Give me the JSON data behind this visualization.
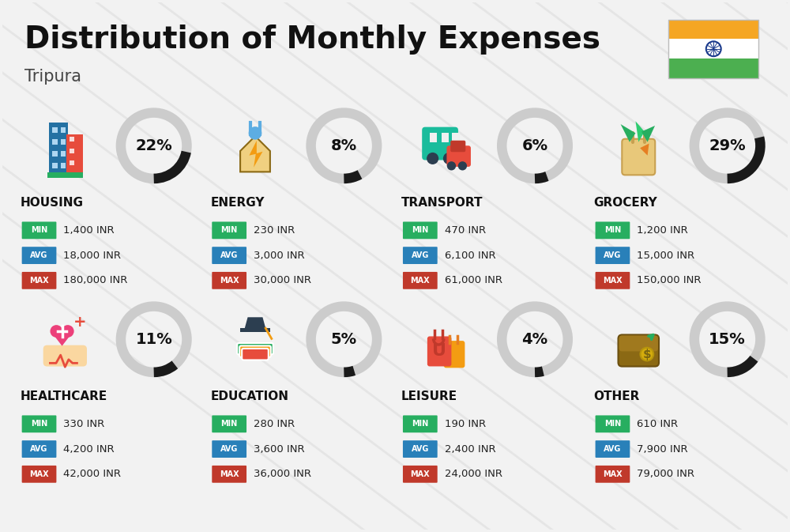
{
  "title": "Distribution of Monthly Expenses",
  "subtitle": "Tripura",
  "bg_color": "#f2f2f2",
  "categories": [
    {
      "name": "HOUSING",
      "percent": 22,
      "min_val": "1,400 INR",
      "avg_val": "18,000 INR",
      "max_val": "180,000 INR",
      "col": 0,
      "row": 0
    },
    {
      "name": "ENERGY",
      "percent": 8,
      "min_val": "230 INR",
      "avg_val": "3,000 INR",
      "max_val": "30,000 INR",
      "col": 1,
      "row": 0
    },
    {
      "name": "TRANSPORT",
      "percent": 6,
      "min_val": "470 INR",
      "avg_val": "6,100 INR",
      "max_val": "61,000 INR",
      "col": 2,
      "row": 0
    },
    {
      "name": "GROCERY",
      "percent": 29,
      "min_val": "1,200 INR",
      "avg_val": "15,000 INR",
      "max_val": "150,000 INR",
      "col": 3,
      "row": 0
    },
    {
      "name": "HEALTHCARE",
      "percent": 11,
      "min_val": "330 INR",
      "avg_val": "4,200 INR",
      "max_val": "42,000 INR",
      "col": 0,
      "row": 1
    },
    {
      "name": "EDUCATION",
      "percent": 5,
      "min_val": "280 INR",
      "avg_val": "3,600 INR",
      "max_val": "36,000 INR",
      "col": 1,
      "row": 1
    },
    {
      "name": "LEISURE",
      "percent": 4,
      "min_val": "190 INR",
      "avg_val": "2,400 INR",
      "max_val": "24,000 INR",
      "col": 2,
      "row": 1
    },
    {
      "name": "OTHER",
      "percent": 15,
      "min_val": "610 INR",
      "avg_val": "7,900 INR",
      "max_val": "79,000 INR",
      "col": 3,
      "row": 1
    }
  ],
  "color_min": "#27ae60",
  "color_avg": "#2980b9",
  "color_max": "#c0392b",
  "donut_bg": "#cccccc",
  "donut_fg": "#1a1a1a",
  "flag_saffron": "#F5A623",
  "flag_white": "#FFFFFF",
  "flag_green": "#4CAF50",
  "flag_chakra": "#1a3a8c",
  "diag_line_color": "#e0e0e0"
}
